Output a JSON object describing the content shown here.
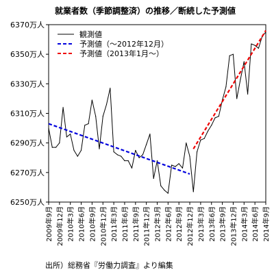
{
  "chart_data": {
    "type": "line",
    "title": "就業者数（季節調整済）の推移／断続した予測値",
    "ylim": [
      6250,
      6370
    ],
    "yticks": [
      6250,
      6270,
      6290,
      6310,
      6330,
      6350,
      6370
    ],
    "ytick_labels": [
      "6250万人",
      "6270万人",
      "6290万人",
      "6310万人",
      "6330万人",
      "6350万人",
      "6370万人"
    ],
    "x": [
      "2009-09",
      "2009-10",
      "2009-11",
      "2009-12",
      "2010-01",
      "2010-02",
      "2010-03",
      "2010-04",
      "2010-05",
      "2010-06",
      "2010-07",
      "2010-08",
      "2010-09",
      "2010-10",
      "2010-11",
      "2010-12",
      "2011-01",
      "2011-02",
      "2011-03",
      "2011-04",
      "2011-05",
      "2011-06",
      "2011-07",
      "2011-08",
      "2011-09",
      "2011-10",
      "2011-11",
      "2011-12",
      "2012-01",
      "2012-02",
      "2012-03",
      "2012-04",
      "2012-05",
      "2012-06",
      "2012-07",
      "2012-08",
      "2012-09",
      "2012-10",
      "2012-11",
      "2012-12",
      "2013-01",
      "2013-02",
      "2013-03",
      "2013-04",
      "2013-05",
      "2013-06",
      "2013-07",
      "2013-08",
      "2013-09",
      "2013-10",
      "2013-11",
      "2013-12",
      "2014-01",
      "2014-02",
      "2014-03",
      "2014-04",
      "2014-05",
      "2014-06",
      "2014-07",
      "2014-08",
      "2014-09"
    ],
    "xtick_labels": [
      "2009年9月",
      "2009年12月",
      "2010年3月",
      "2010年6月",
      "2010年9月",
      "2010年12月",
      "2011年3月",
      "2011年6月",
      "2011年9月",
      "2011年12月",
      "2012年3月",
      "2012年6月",
      "2012年9月",
      "2012年12月",
      "2013年3月",
      "2013年6月",
      "2013年9月",
      "2013年12月",
      "2014年3月",
      "2014年6月",
      "2014年9月"
    ],
    "legend_position": "top-left",
    "series": [
      {
        "name": "観測値",
        "style": "solid",
        "color": "#000000",
        "values": [
          6300,
          6287,
          6287,
          6290,
          6314,
          6294,
          6296,
          6285,
          6281,
          6285,
          6302,
          6303,
          6319,
          6308,
          6286,
          6308,
          6316,
          6327,
          6284,
          6282,
          6281,
          6278,
          6278,
          6273,
          6285,
          6280,
          6282,
          6289,
          6296,
          6266,
          6278,
          6261,
          6258,
          6256,
          6275,
          6274,
          6276,
          6273,
          6290,
          6281,
          6257,
          6284,
          6292,
          6293,
          6298,
          6302,
          6307,
          6308,
          6319,
          6328,
          6349,
          6350,
          6320,
          6333,
          6345,
          6323,
          6357,
          6356,
          6354,
          6362,
          6365
        ]
      },
      {
        "name": "予測値（～2012年12月）",
        "style": "dashed",
        "color": "#0000dd",
        "x_range": [
          "2009-09",
          "2012-12"
        ],
        "values_start_end": [
          6303,
          6269
        ]
      },
      {
        "name": "予測値（2013年1月～）",
        "style": "dashed",
        "color": "#ee0000",
        "x_range": [
          "2013-01",
          "2014-09"
        ],
        "values_start_end": [
          6286,
          6366
        ]
      }
    ],
    "source": "出所）総務省『労働力調査』より編集"
  }
}
